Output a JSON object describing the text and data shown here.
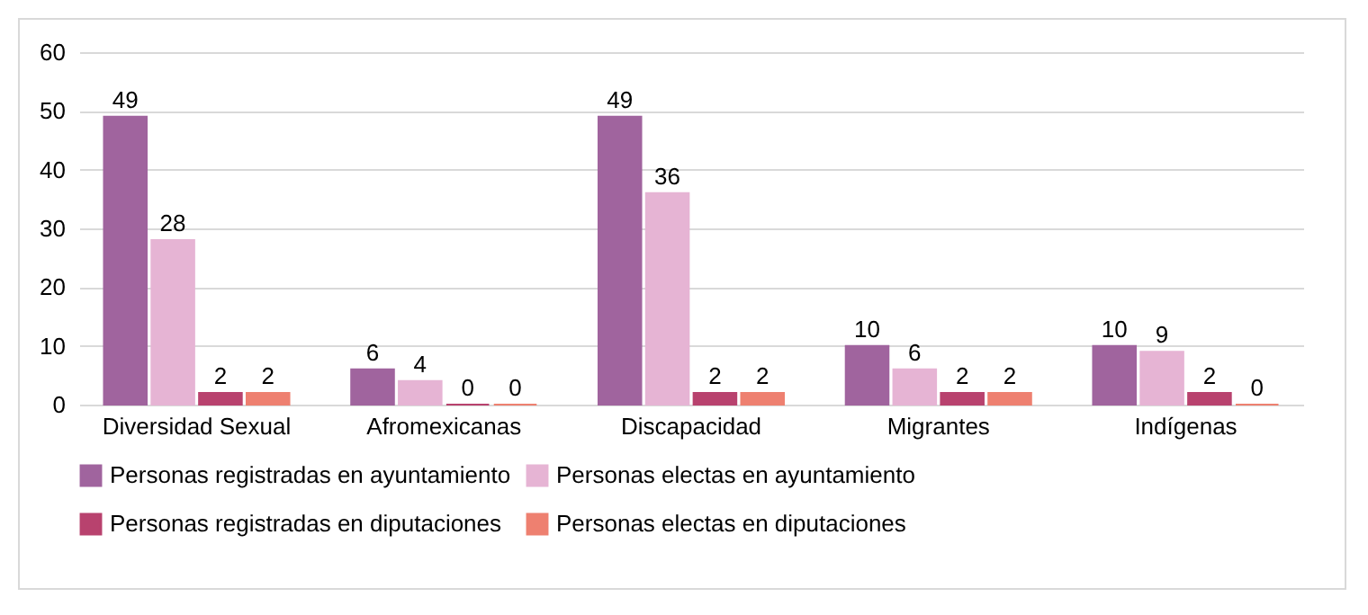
{
  "chart_data": {
    "type": "bar",
    "categories": [
      "Diversidad Sexual",
      "Afromexicanas",
      "Discapacidad",
      "Migrantes",
      "Indígenas"
    ],
    "series": [
      {
        "name": "Personas registradas en ayuntamiento",
        "color": "#a0649e",
        "values": [
          49,
          6,
          49,
          10,
          10
        ]
      },
      {
        "name": "Personas electas en ayuntamiento",
        "color": "#e6b4d4",
        "values": [
          28,
          4,
          36,
          6,
          9
        ]
      },
      {
        "name": "Personas registradas en diputaciones",
        "color": "#b8426e",
        "values": [
          2,
          0,
          2,
          2,
          2
        ]
      },
      {
        "name": "Personas electas en diputaciones",
        "color": "#ee8070",
        "values": [
          2,
          0,
          2,
          2,
          0
        ]
      }
    ],
    "ylim": [
      0,
      60
    ],
    "yticks": [
      0,
      10,
      20,
      30,
      40,
      50,
      60
    ],
    "grid": "y",
    "legend": "bottom",
    "data_labels": true
  }
}
